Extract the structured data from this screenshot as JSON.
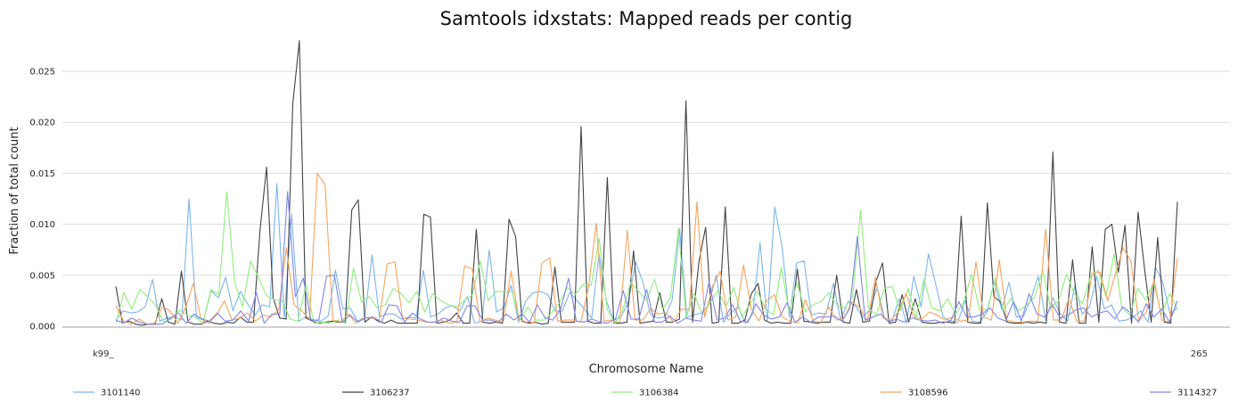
{
  "chart_data": {
    "type": "line",
    "title": "Samtools idxstats: Mapped reads per contig",
    "xlabel": "Chromosome Name",
    "ylabel": "Fraction of total count",
    "ylim": [
      0,
      0.0285
    ],
    "yticks": [
      "0.000",
      "0.005",
      "0.010",
      "0.015",
      "0.020",
      "0.025"
    ],
    "grid": true,
    "legend_position": "bottom",
    "x_tick_labels": [
      "k99_",
      "265"
    ],
    "series": [
      {
        "name": "3101140",
        "color": "#7cb5ec",
        "values": [
          0.0006,
          0.0015,
          0.0013,
          0.0014,
          0.0019,
          0.0046,
          0.0005,
          0.0008,
          0.0009,
          0.0006,
          0.0125,
          0.0008,
          0.0007,
          0.0035,
          0.0028,
          0.0048,
          0.0015,
          0.0034,
          0.0022,
          0.0011,
          0.0021,
          0.0019,
          0.014,
          0.0008,
          0.011,
          0.0005,
          0.0009,
          0.0006,
          0.0005,
          0.001,
          0.0055,
          0.0017,
          0.0018,
          0.0005,
          0.0009,
          0.007,
          0.0009,
          0.0012,
          0.0012,
          0.0007,
          0.0009,
          0.0008,
          0.0055,
          0.0009,
          0.0012,
          0.0018,
          0.002,
          0.0015,
          0.0029,
          0.0003,
          0.0005,
          0.0075,
          0.0014,
          0.0018,
          0.004,
          0.0004,
          0.0025,
          0.0033,
          0.0034,
          0.0031,
          0.0015,
          0.0015,
          0.0033,
          0.0025,
          0.0017,
          0.0008,
          0.0071,
          0.0025,
          0.0006,
          0.0009,
          0.0024,
          0.0063,
          0.0043,
          0.0012,
          0.0008,
          0.0009,
          0.0026,
          0.0096,
          0.0009,
          0.0011,
          0.0013,
          0.0021,
          0.005,
          0.0004,
          0.0013,
          0.0019,
          0.0003,
          0.0012,
          0.0082,
          0.0005,
          0.0117,
          0.0078,
          0.0009,
          0.0062,
          0.0064,
          0.0011,
          0.0013,
          0.0012,
          0.0042,
          0.0006,
          0.0024,
          0.002,
          0.0009,
          0.0016,
          0.0038,
          0.0008,
          0.0005,
          0.0027,
          0.0003,
          0.0049,
          0.0019,
          0.0071,
          0.0041,
          0.0009,
          0.0005,
          0.0004,
          0.0025,
          0.0005,
          0.0004,
          0.0014,
          0.0044,
          0.0016,
          0.0043,
          0.0009,
          0.001,
          0.0027,
          0.0049,
          0.0006,
          0.0028,
          0.0012,
          0.0005,
          0.004,
          0.0012,
          0.0019,
          0.0049,
          0.0017,
          0.0021,
          0.0005,
          0.0006,
          0.0009,
          0.0015,
          0.0004,
          0.0058,
          0.0043,
          0.0012,
          0.0018
        ]
      },
      {
        "name": "3106237",
        "color": "#434348",
        "values": [
          0.0039,
          0.0003,
          0.0005,
          0.0002,
          0.0001,
          0.0002,
          0.0002,
          0.0027,
          0.0004,
          0.0002,
          0.0054,
          0.0004,
          0.0002,
          0.0002,
          0.0005,
          0.0003,
          0.0002,
          0.0004,
          0.0003,
          0.0009,
          0.0004,
          0.0004,
          0.0094,
          0.0156,
          0.0028,
          0.0008,
          0.0007,
          0.0218,
          0.028,
          0.0008,
          0.0005,
          0.0003,
          0.0004,
          0.0005,
          0.0004,
          0.0004,
          0.0114,
          0.0124,
          0.0004,
          0.0009,
          0.0005,
          0.0003,
          0.0006,
          0.0003,
          0.0003,
          0.0003,
          0.0003,
          0.011,
          0.0107,
          0.0003,
          0.0004,
          0.0006,
          0.0013,
          0.0003,
          0.0003,
          0.0095,
          0.0004,
          0.0003,
          0.0004,
          0.0003,
          0.0105,
          0.0088,
          0.0005,
          0.0003,
          0.0004,
          0.0002,
          0.0003,
          0.0058,
          0.0004,
          0.0004,
          0.0004,
          0.0196,
          0.0005,
          0.0003,
          0.0003,
          0.0146,
          0.0003,
          0.0003,
          0.0004,
          0.0074,
          0.0003,
          0.0004,
          0.0005,
          0.0033,
          0.0004,
          0.0004,
          0.0007,
          0.0221,
          0.0004,
          0.0064,
          0.0097,
          0.0003,
          0.0004,
          0.0117,
          0.0003,
          0.0003,
          0.0006,
          0.0032,
          0.0042,
          0.0006,
          0.0003,
          0.0004,
          0.0003,
          0.0003,
          0.0056,
          0.0005,
          0.0004,
          0.0003,
          0.0004,
          0.0004,
          0.005,
          0.0004,
          0.0003,
          0.0036,
          0.0004,
          0.0005,
          0.0044,
          0.0062,
          0.0003,
          0.0004,
          0.0031,
          0.0004,
          0.0027,
          0.0004,
          0.0003,
          0.0003,
          0.0004,
          0.0004,
          0.0003,
          0.0108,
          0.0004,
          0.0003,
          0.0003,
          0.0121,
          0.0029,
          0.0024,
          0.0004,
          0.0003,
          0.0003,
          0.0004,
          0.0003,
          0.0004,
          0.0003,
          0.0171,
          0.0004,
          0.0003,
          0.0065,
          0.0003,
          0.0003,
          0.0078,
          0.0004,
          0.0095,
          0.01,
          0.0053,
          0.0099,
          0.0003,
          0.0112,
          0.0056,
          0.0004,
          0.0087,
          0.0004,
          0.0003,
          0.0122
        ]
      },
      {
        "name": "3106384",
        "color": "#90ed7d",
        "values": [
          0.0003,
          0.0033,
          0.0017,
          0.0036,
          0.0029,
          0.0021,
          0.0004,
          0.0007,
          0.0016,
          0.0011,
          0.0009,
          0.0003,
          0.0036,
          0.0031,
          0.0132,
          0.0043,
          0.0019,
          0.0064,
          0.0048,
          0.003,
          0.0026,
          0.0025,
          0.0007,
          0.0005,
          0.0041,
          0.0003,
          0.0004,
          0.0003,
          0.0006,
          0.0003,
          0.0057,
          0.0024,
          0.0029,
          0.0018,
          0.0021,
          0.0037,
          0.0032,
          0.0023,
          0.0034,
          0.0014,
          0.0032,
          0.0025,
          0.0021,
          0.0019,
          0.0025,
          0.0031,
          0.0064,
          0.0025,
          0.0034,
          0.0034,
          0.0034,
          0.0006,
          0.0019,
          0.0006,
          0.0006,
          0.0013,
          0.0023,
          0.0038,
          0.0031,
          0.0041,
          0.004,
          0.0086,
          0.0017,
          0.0003,
          0.0016,
          0.0043,
          0.0034,
          0.0025,
          0.0046,
          0.0017,
          0.0028,
          0.0095,
          0.0009,
          0.0032,
          0.0012,
          0.0023,
          0.0035,
          0.0019,
          0.0038,
          0.0009,
          0.0021,
          0.0034,
          0.0017,
          0.0011,
          0.0058,
          0.0014,
          0.0043,
          0.0014,
          0.0021,
          0.0024,
          0.0033,
          0.0021,
          0.0018,
          0.0029,
          0.0114,
          0.0018,
          0.0011,
          0.0037,
          0.0039,
          0.0015,
          0.0037,
          0.0008,
          0.0046,
          0.0018,
          0.0015,
          0.0027,
          0.0012,
          0.0023,
          0.0051,
          0.0017,
          0.0016,
          0.0047,
          0.0016,
          0.0027,
          0.0015,
          0.0021,
          0.0029,
          0.0055,
          0.0018,
          0.0025,
          0.0051,
          0.0032,
          0.0022,
          0.0048,
          0.0055,
          0.0029,
          0.0071,
          0.0018,
          0.0011,
          0.0037,
          0.0026,
          0.0043,
          0.0011,
          0.0032,
          0.0017
        ]
      },
      {
        "name": "3108596",
        "color": "#f7a35c",
        "values": [
          0.002,
          0.0005,
          0.0002,
          0.0007,
          0.0002,
          0.0003,
          0.0019,
          0.0015,
          0.0003,
          0.0018,
          0.0042,
          0.0007,
          0.0003,
          0.0011,
          0.0025,
          0.0006,
          0.0008,
          0.0013,
          0.0005,
          0.0011,
          0.0009,
          0.0016,
          0.0077,
          0.0021,
          0.0015,
          0.0007,
          0.015,
          0.0139,
          0.0006,
          0.0004,
          0.0012,
          0.0003,
          0.0008,
          0.0008,
          0.0006,
          0.0061,
          0.0063,
          0.0008,
          0.0007,
          0.0006,
          0.0004,
          0.0004,
          0.0006,
          0.0003,
          0.0004,
          0.0059,
          0.0056,
          0.0004,
          0.0008,
          0.0006,
          0.0004,
          0.0054,
          0.0007,
          0.0004,
          0.0004,
          0.0062,
          0.0067,
          0.0005,
          0.0006,
          0.0006,
          0.0004,
          0.0038,
          0.0101,
          0.0005,
          0.0006,
          0.0004,
          0.0094,
          0.0006,
          0.0006,
          0.0017,
          0.0012,
          0.0013,
          0.0004,
          0.0017,
          0.0016,
          0.0122,
          0.0009,
          0.0039,
          0.0054,
          0.0006,
          0.0009,
          0.006,
          0.0017,
          0.0005,
          0.0025,
          0.0031,
          0.0009,
          0.0005,
          0.0003,
          0.0026,
          0.0005,
          0.0004,
          0.0019,
          0.0006,
          0.0008,
          0.0024,
          0.0018,
          0.0005,
          0.0048,
          0.0008,
          0.0006,
          0.0014,
          0.0032,
          0.0009,
          0.0007,
          0.0014,
          0.0011,
          0.0006,
          0.0009,
          0.0005,
          0.0006,
          0.0063,
          0.0009,
          0.0006,
          0.0065,
          0.0006,
          0.0004,
          0.0004,
          0.0005,
          0.0005,
          0.0095,
          0.0006,
          0.0006,
          0.0027,
          0.0005,
          0.0005,
          0.0052,
          0.0053,
          0.0025,
          0.0051,
          0.0077,
          0.0064,
          0.0005,
          0.0014,
          0.0046,
          0.0006,
          0.0004,
          0.0067
        ]
      },
      {
        "name": "3114327",
        "color": "#8085e9",
        "values": [
          0.0006,
          0.0003,
          0.0008,
          0.0004,
          0.0002,
          0.0002,
          0.0002,
          0.0008,
          0.0013,
          0.0003,
          0.0012,
          0.0007,
          0.0005,
          0.0013,
          0.0005,
          0.0006,
          0.0015,
          0.0005,
          0.0033,
          0.0003,
          0.0012,
          0.0012,
          0.0132,
          0.0029,
          0.0047,
          0.0006,
          0.0006,
          0.0049,
          0.005,
          0.0004,
          0.0011,
          0.0004,
          0.0008,
          0.0009,
          0.0004,
          0.0021,
          0.002,
          0.0004,
          0.0013,
          0.0007,
          0.0004,
          0.0004,
          0.0008,
          0.0005,
          0.0004,
          0.002,
          0.002,
          0.0006,
          0.0006,
          0.0004,
          0.0012,
          0.0006,
          0.0012,
          0.0004,
          0.0021,
          0.0008,
          0.0006,
          0.0017,
          0.0047,
          0.0005,
          0.0004,
          0.0007,
          0.0004,
          0.0003,
          0.0007,
          0.0035,
          0.0007,
          0.0007,
          0.0036,
          0.0004,
          0.0004,
          0.001,
          0.0003,
          0.0008,
          0.0006,
          0.0005,
          0.0044,
          0.0006,
          0.0008,
          0.0021,
          0.0005,
          0.0004,
          0.0022,
          0.0011,
          0.0007,
          0.0009,
          0.0023,
          0.0004,
          0.0009,
          0.0004,
          0.0009,
          0.0009,
          0.001,
          0.0005,
          0.0017,
          0.0088,
          0.0006,
          0.0009,
          0.0012,
          0.0004,
          0.0007,
          0.0004,
          0.0008,
          0.0006,
          0.0005,
          0.0006,
          0.0003,
          0.0006,
          0.0024,
          0.0009,
          0.0009,
          0.0012,
          0.0018,
          0.0008,
          0.0005,
          0.0024,
          0.0005,
          0.0032,
          0.0012,
          0.0009,
          0.0021,
          0.0008,
          0.0011,
          0.0016,
          0.0018,
          0.0009,
          0.0013,
          0.0015,
          0.0007,
          0.0019,
          0.0013,
          0.0004,
          0.0022,
          0.0009,
          0.0017,
          0.0004,
          0.0025
        ]
      }
    ]
  }
}
